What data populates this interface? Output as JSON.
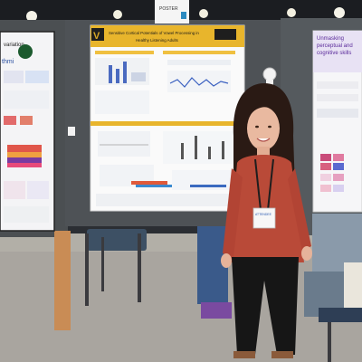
{
  "photo": {
    "left_poster": {
      "title_fragment": "variation",
      "tag_fragment": "thmi"
    },
    "center_poster": {
      "title_line1": "Sensitive Cortical Potentials of Vowel Processing in",
      "title_line2": "Healthy Listening Adults",
      "logo_letter": "V"
    },
    "right_poster": {
      "title_line1": "Unmasking",
      "title_line2": "perceptual and",
      "title_line3": "cognitive skills"
    },
    "board_sign": {
      "line1": "POSTER"
    },
    "badge": {
      "line1": "ATTENDEE"
    }
  }
}
